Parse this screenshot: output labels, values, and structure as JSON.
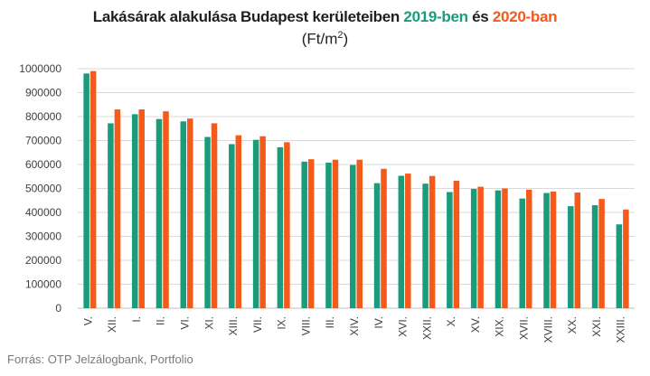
{
  "title": {
    "part1": "Lakásárak alakulása Budapest kerületeiben ",
    "part2": "2019-ben",
    "part3": " és ",
    "part4": "2020-ban",
    "subtitle_main": "(Ft/m",
    "subtitle_sup": "2",
    "subtitle_end": ")"
  },
  "colors": {
    "series_2019": "#1a9c7c",
    "series_2020": "#f35a1b",
    "axis_text": "#404040",
    "grid": "#d9d9d9"
  },
  "source": "Forrás: OTP Jelzálogbank, Portfolio",
  "chart_data": {
    "type": "bar",
    "categories": [
      "V.",
      "XII.",
      "I.",
      "II.",
      "VI.",
      "XI.",
      "XIII.",
      "VII.",
      "IX.",
      "VIII.",
      "III.",
      "XIV.",
      "IV.",
      "XVI.",
      "XXII.",
      "X.",
      "XV.",
      "XIX.",
      "XVII.",
      "XVIII.",
      "XX.",
      "XXI.",
      "XXIII."
    ],
    "series": [
      {
        "name": "2019-ben",
        "values": [
          980000,
          772000,
          810000,
          790000,
          780000,
          715000,
          685000,
          703000,
          672000,
          612000,
          608000,
          598000,
          522000,
          553000,
          520000,
          485000,
          498000,
          492000,
          458000,
          481000,
          426000,
          430000,
          350000
        ]
      },
      {
        "name": "2020-ban",
        "values": [
          990000,
          830000,
          830000,
          822000,
          792000,
          772000,
          722000,
          718000,
          693000,
          622000,
          620000,
          620000,
          582000,
          562000,
          552000,
          532000,
          507000,
          500000,
          495000,
          487000,
          483000,
          456000,
          412000
        ]
      }
    ],
    "ylim": [
      0,
      1000000
    ],
    "yticks": [
      "0",
      "100000",
      "200000",
      "300000",
      "400000",
      "500000",
      "600000",
      "700000",
      "800000",
      "900000",
      "1000000"
    ],
    "grid": true,
    "legend": "none"
  }
}
